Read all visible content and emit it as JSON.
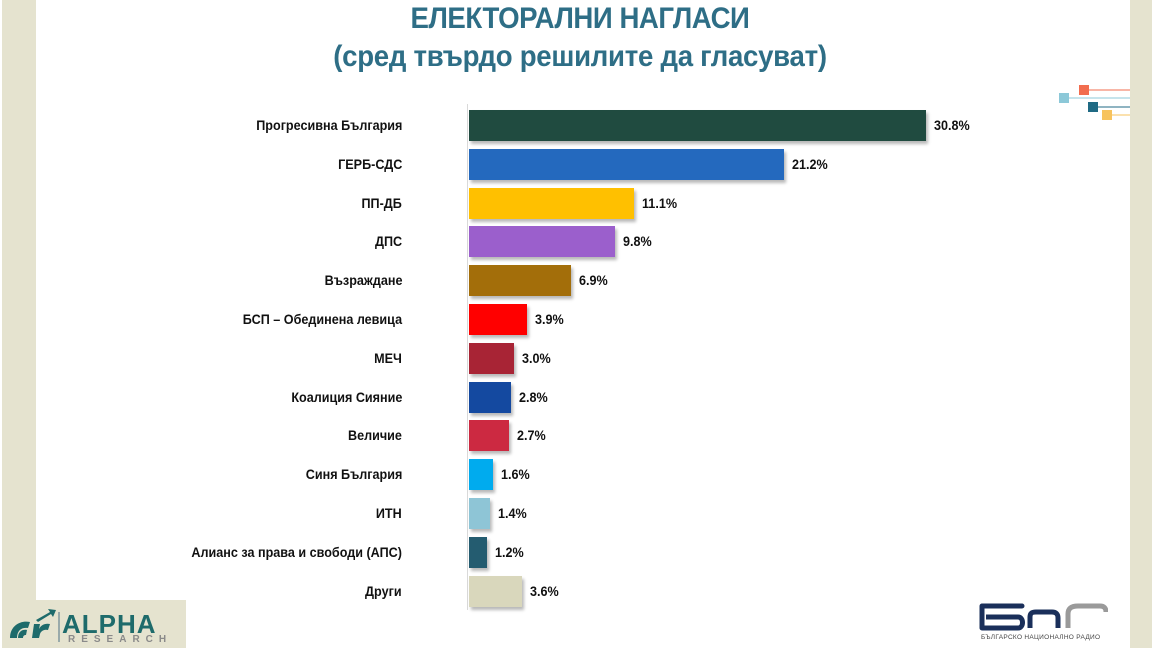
{
  "title": {
    "line1": "ЕЛЕКТОРАЛНИ НАГЛАСИ",
    "line2": "(сред твърдо решилите да гласуват)"
  },
  "logos": {
    "alpha_research": {
      "word": "ALPHA",
      "sub": "RESEARCH",
      "reg": "®"
    },
    "bnr": {
      "sub": "БЪЛГАРСКО НАЦИОНАЛНО РАДИО"
    }
  },
  "chart_data": {
    "type": "bar",
    "orientation": "horizontal",
    "title": "ЕЛЕКТОРАЛНИ НАГЛАСИ (сред твърдо решилите да гласуват)",
    "xlabel": "",
    "ylabel": "",
    "grid": false,
    "legend": "none",
    "unit": "%",
    "categories": [
      "Прогресивна България",
      "ГЕРБ-СДС",
      "ПП-ДБ",
      "ДПС",
      "Възраждане",
      "БСП – Обединена левица",
      "МЕЧ",
      "Коалиция Сияние",
      "Величие",
      "Синя България",
      "ИТН",
      "Алианс за права и свободи (АПС)",
      "Други"
    ],
    "values": [
      30.8,
      21.2,
      11.1,
      9.8,
      6.9,
      3.9,
      3.0,
      2.8,
      2.7,
      1.6,
      1.4,
      1.2,
      3.6
    ],
    "value_labels": [
      "30.8%",
      "21.2%",
      "11.1%",
      "9.8%",
      "6.9%",
      "3.9%",
      "3.0%",
      "2.8%",
      "2.7%",
      "1.6%",
      "1.4%",
      "1.2%",
      "3.6%"
    ],
    "colors": [
      "#204B40",
      "#2469BE",
      "#FFC000",
      "#9B5FCC",
      "#A36E0A",
      "#FF0000",
      "#A82435",
      "#1449A0",
      "#CC2941",
      "#00ABEE",
      "#8EC5D6",
      "#245C70",
      "#D9D7BC"
    ]
  },
  "theme": {
    "title_color": "#2E6E86",
    "frame_color": "#E5E3CF"
  }
}
